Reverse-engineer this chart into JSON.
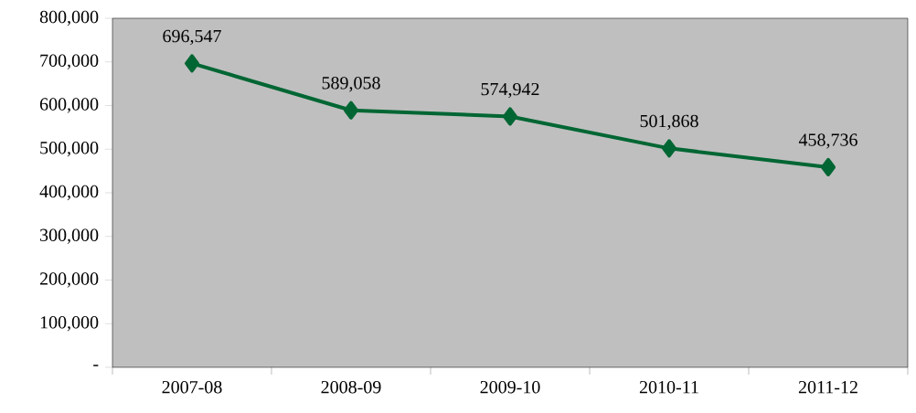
{
  "chart_data": {
    "type": "line",
    "categories": [
      "2007-08",
      "2008-09",
      "2009-10",
      "2010-11",
      "2011-12"
    ],
    "values": [
      696547,
      589058,
      574942,
      501868,
      458736
    ],
    "value_labels": [
      "696,547",
      "589,058",
      "574,942",
      "501,868",
      "458,736"
    ],
    "color": "#006633",
    "marker": "diamond",
    "line_style": "solid",
    "grid": false,
    "ylim": [
      0,
      800000
    ],
    "yticks": [
      {
        "value": 0,
        "label": "-"
      },
      {
        "value": 100000,
        "label": "100,000"
      },
      {
        "value": 200000,
        "label": "200,000"
      },
      {
        "value": 300000,
        "label": "300,000"
      },
      {
        "value": 400000,
        "label": "400,000"
      },
      {
        "value": 500000,
        "label": "500,000"
      },
      {
        "value": 600000,
        "label": "600,000"
      },
      {
        "value": 700000,
        "label": "700,000"
      },
      {
        "value": 800000,
        "label": "800,000"
      }
    ]
  }
}
